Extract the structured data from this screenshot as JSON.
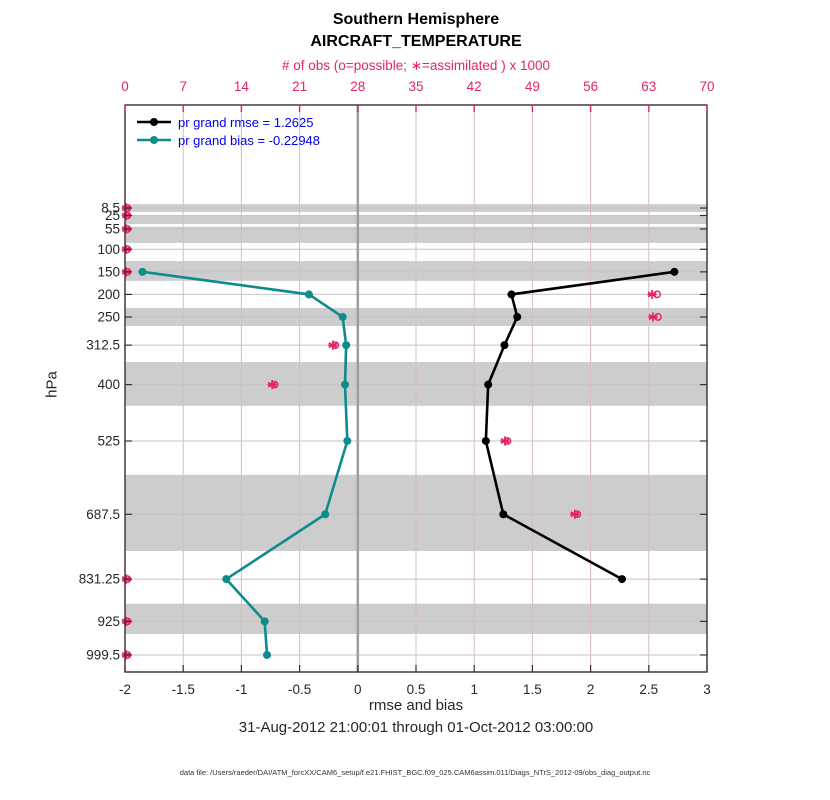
{
  "header": {
    "title_line1": "Southern Hemisphere",
    "title_line2": "AIRCRAFT_TEMPERATURE"
  },
  "footer": {
    "xlabel": "rmse and bias",
    "timespan": "31-Aug-2012 21:00:01 through 01-Oct-2012 03:00:00",
    "datafile": "data file: /Users/raeder/DAI/ATM_forcXX/CAM6_setup/f.e21.FHIST_BGC.f09_025.CAM6assim.011/Diags_NTrS_2012-09/obs_diag_output.nc"
  },
  "chart_data": {
    "type": "line",
    "title": "Southern Hemisphere",
    "subtitle": "AIRCRAFT_TEMPERATURE",
    "top_axis": {
      "label": "# of obs (o=possible; ∗=assimilated ) x 1000",
      "min": 0,
      "max": 70,
      "ticks": [
        0,
        7,
        14,
        21,
        28,
        35,
        42,
        49,
        56,
        63,
        70
      ],
      "color": "#e0256c"
    },
    "x_axis": {
      "label": "rmse and bias",
      "min": -2,
      "max": 3,
      "ticks": [
        -2,
        -1.5,
        -1,
        -0.5,
        0,
        0.5,
        1,
        1.5,
        2,
        2.5,
        3
      ],
      "zero_line": true,
      "zero_line_color": "#9e9e9e"
    },
    "y_axis": {
      "label": "hPa",
      "direction": "pressure-increasing-downward",
      "tick_labels": [
        "8.5",
        "25",
        "55",
        "100",
        "150",
        "200",
        "250",
        "312.5",
        "400",
        "525",
        "687.5",
        "831.25",
        "925",
        "999.5"
      ]
    },
    "levels_hpa": [
      8.5,
      25,
      55,
      100,
      150,
      200,
      250,
      312.5,
      400,
      525,
      687.5,
      831.25,
      925,
      999.5
    ],
    "series": [
      {
        "name": "pr grand rmse",
        "legend": "pr grand rmse = 1.2625",
        "grand_value": 1.2625,
        "color": "#000000",
        "values": [
          null,
          null,
          null,
          null,
          2.72,
          1.32,
          1.37,
          1.26,
          1.12,
          1.1,
          1.25,
          2.27,
          null,
          null
        ]
      },
      {
        "name": "pr grand bias",
        "legend": "pr grand bias = -0.22948",
        "grand_value": -0.22948,
        "color": "#0e8b8b",
        "values": [
          null,
          null,
          null,
          null,
          -1.85,
          -0.42,
          -0.13,
          -0.1,
          -0.11,
          -0.09,
          -0.28,
          -1.13,
          -0.8,
          -0.78
        ]
      }
    ],
    "obs_counts_thousands": {
      "color": "#e0256c",
      "possible": [
        0.3,
        0.3,
        0.3,
        0.3,
        0.3,
        64.0,
        64.1,
        25.3,
        18.0,
        46.0,
        54.4,
        0.3,
        0.3,
        0.3
      ],
      "assimilated": [
        0.15,
        0.15,
        0.15,
        0.15,
        0.15,
        63.4,
        63.5,
        25.0,
        17.7,
        45.7,
        54.1,
        0.15,
        0.15,
        0.15
      ]
    },
    "layer_bands_hpa": [
      [
        0,
        17
      ],
      [
        26,
        44
      ],
      [
        50,
        86
      ],
      [
        126,
        170
      ],
      [
        230,
        270
      ],
      [
        350,
        447
      ],
      [
        600,
        769
      ],
      [
        886,
        953
      ]
    ],
    "band_color": "#cdcdcd",
    "grid": true,
    "legend_position": "top-left-inside",
    "legend_text_color": "#0000ee"
  }
}
